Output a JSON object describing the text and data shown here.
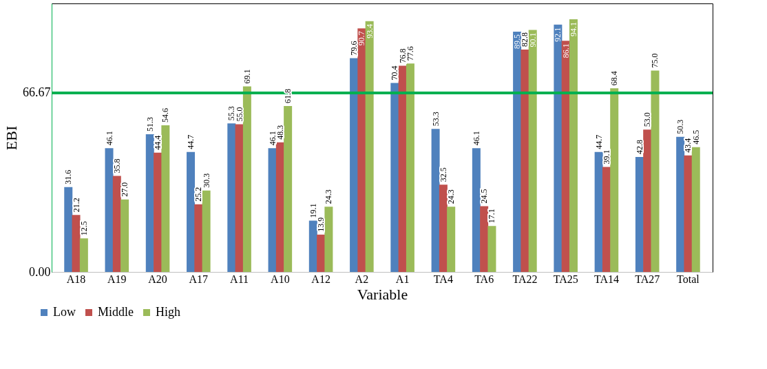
{
  "chart_data": {
    "type": "bar",
    "xlabel": "Variable",
    "ylabel": "EBI",
    "categories": [
      "A18",
      "A19",
      "A20",
      "A17",
      "A11",
      "A10",
      "A12",
      "A2",
      "A1",
      "TA4",
      "TA6",
      "TA22",
      "TA25",
      "TA14",
      "TA27",
      "Total"
    ],
    "series": [
      {
        "name": "Low",
        "color": "#4f81bd",
        "values": [
          31.6,
          46.1,
          51.3,
          44.7,
          55.3,
          46.1,
          19.1,
          79.6,
          70.4,
          53.3,
          46.1,
          89.5,
          92.1,
          44.7,
          42.8,
          50.3
        ],
        "value_labels": [
          "31.6",
          "46.1",
          "51.3",
          "44.7",
          "55.3",
          "46.1",
          "19.1",
          "79.6",
          "70.4",
          "53.3",
          "46.1",
          "89.5",
          "92.1",
          "44.7",
          "42.8",
          "50.3"
        ]
      },
      {
        "name": "Middle",
        "color": "#c0504d",
        "values": [
          21.2,
          35.8,
          44.4,
          25.2,
          55.0,
          48.3,
          13.9,
          90.7,
          76.8,
          32.5,
          24.5,
          82.8,
          86.1,
          39.1,
          53.0,
          43.4
        ],
        "value_labels": [
          "21.2",
          "35.8",
          "44.4",
          "25.2",
          "55.0",
          "48.3",
          "13.9",
          "90.7",
          "76.8",
          "32.5",
          "24.5",
          "82.8",
          "86.1",
          "39.1",
          "53.0",
          "43.4"
        ]
      },
      {
        "name": "High",
        "color": "#9bbb59",
        "values": [
          12.5,
          27.0,
          54.6,
          30.3,
          69.1,
          61.8,
          24.3,
          93.4,
          77.6,
          24.3,
          17.1,
          90.1,
          94.1,
          68.4,
          75.0,
          46.5
        ],
        "value_labels": [
          "12.5",
          "27.0",
          "54.6",
          "30.3",
          "69.1",
          "61.8",
          "24.3",
          "93.4",
          "77.6",
          "24.3",
          "17.1",
          "90.1",
          "94.1",
          "68.4",
          "75.0",
          "46.5"
        ]
      }
    ],
    "ylim": [
      0,
      100
    ],
    "yticks": [
      {
        "value": 0,
        "label": "0.00"
      },
      {
        "value": 66.67,
        "label": "66.67"
      }
    ],
    "ref_lines": [
      {
        "axis": "y",
        "value": 66.67,
        "color": "#00b050"
      }
    ],
    "grid": false,
    "legend": "bottom left"
  }
}
